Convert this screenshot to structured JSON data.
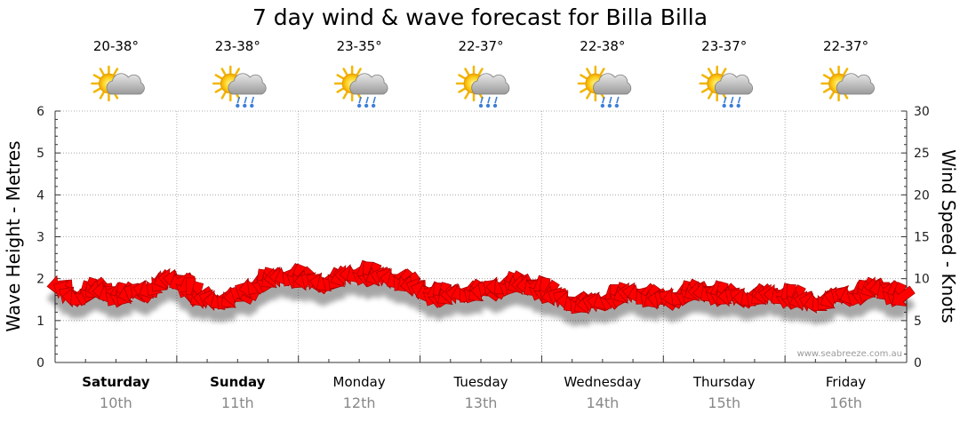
{
  "chart_data": {
    "type": "line",
    "title": "7 day wind & wave forecast for Billa Billa",
    "ylabel_left": "Wave Height - Metres",
    "ylabel_right": "Wind Speed - Knots",
    "ylim_left": [
      0,
      6
    ],
    "ylim_right": [
      0,
      30
    ],
    "left_ticks": [
      "0",
      "1",
      "2",
      "3",
      "4",
      "5",
      "6"
    ],
    "right_ticks": [
      "0",
      "5",
      "10",
      "15",
      "20",
      "25",
      "30"
    ],
    "grid": true,
    "days": [
      {
        "day": "Saturday",
        "date": "10th",
        "temp": "20-38°",
        "weather": "partly-cloudy-icon",
        "bold": true
      },
      {
        "day": "Sunday",
        "date": "11th",
        "temp": "23-38°",
        "weather": "showers-icon",
        "bold": true
      },
      {
        "day": "Monday",
        "date": "12th",
        "temp": "23-35°",
        "weather": "showers-icon",
        "bold": false
      },
      {
        "day": "Tuesday",
        "date": "13th",
        "temp": "22-37°",
        "weather": "showers-icon",
        "bold": false
      },
      {
        "day": "Wednesday",
        "date": "14th",
        "temp": "22-38°",
        "weather": "showers-icon",
        "bold": false
      },
      {
        "day": "Thursday",
        "date": "15th",
        "temp": "23-37°",
        "weather": "showers-icon",
        "bold": false
      },
      {
        "day": "Friday",
        "date": "16th",
        "temp": "22-37°",
        "weather": "partly-cloudy-icon",
        "bold": false
      }
    ],
    "series": [
      {
        "name": "Wind Speed (knots)",
        "color": "#ff0000",
        "values": [
          9.2,
          8.6,
          7.9,
          7.8,
          7.9,
          8.2,
          8.6,
          8.8,
          8.7,
          8.5,
          8.2,
          8.0,
          8.0,
          8.1,
          8.2,
          8.3,
          8.4,
          8.6,
          8.8,
          9.2,
          9.6,
          9.9,
          10.0,
          9.9,
          9.6,
          9.1,
          8.6,
          8.1,
          7.8,
          7.6,
          7.5,
          7.4,
          7.4,
          7.5,
          7.6,
          7.8,
          8.1,
          8.5,
          8.9,
          9.3,
          9.6,
          9.8,
          10.0,
          10.1,
          10.2,
          10.3,
          10.3,
          10.2,
          10.0,
          9.8,
          9.6,
          9.5,
          9.5,
          9.6,
          9.8,
          10.0,
          10.2,
          10.4,
          10.5,
          10.6,
          10.6,
          10.5,
          10.4,
          10.3,
          10.2,
          10.1,
          10.0,
          9.9,
          9.7,
          9.5,
          9.2,
          8.9,
          8.6,
          8.3,
          8.1,
          8.0,
          8.0,
          8.0,
          8.1,
          8.2,
          8.3,
          8.3,
          8.4,
          8.4,
          8.5,
          8.6,
          8.8,
          9.0,
          9.2,
          9.3,
          9.4,
          9.4,
          9.3,
          9.2,
          9.0,
          8.8,
          8.6,
          8.3,
          8.0,
          7.8,
          7.5,
          7.3,
          7.1,
          7.0,
          7.0,
          7.0,
          7.1,
          7.2,
          7.4,
          7.6,
          7.8,
          8.0,
          8.2,
          8.3,
          8.3,
          8.2,
          8.0,
          7.8,
          7.6,
          7.5,
          7.5,
          7.6,
          7.8,
          8.0,
          8.2,
          8.4,
          8.5,
          8.5,
          8.4,
          8.3,
          8.2,
          8.1,
          8.0,
          7.9,
          7.8,
          7.7,
          7.7,
          7.8,
          7.9,
          8.0,
          8.1,
          8.1,
          8.1,
          8.0,
          7.9,
          7.8,
          7.7,
          7.5,
          7.3,
          7.2,
          7.1,
          7.2,
          7.4,
          7.6,
          7.8,
          7.9,
          8.0,
          8.0,
          8.1,
          8.3,
          8.6,
          8.9,
          9.0,
          8.8,
          8.5,
          8.2,
          8.0,
          7.8
        ]
      }
    ]
  },
  "credit": "www.seabreeze.com.au"
}
